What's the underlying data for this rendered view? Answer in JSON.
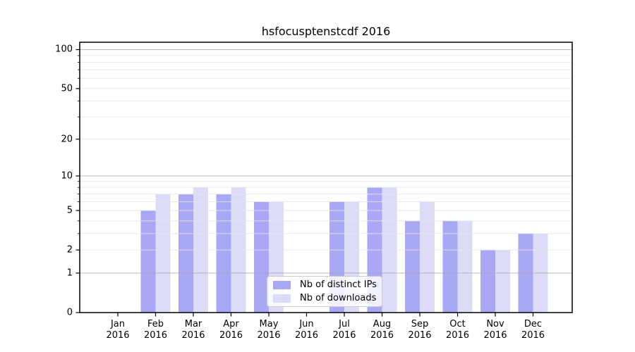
{
  "chart_data": {
    "type": "bar",
    "title": "hsfocusptenstcdf 2016",
    "categories": [
      {
        "month": "Jan",
        "year": "2016"
      },
      {
        "month": "Feb",
        "year": "2016"
      },
      {
        "month": "Mar",
        "year": "2016"
      },
      {
        "month": "Apr",
        "year": "2016"
      },
      {
        "month": "May",
        "year": "2016"
      },
      {
        "month": "Jun",
        "year": "2016"
      },
      {
        "month": "Jul",
        "year": "2016"
      },
      {
        "month": "Aug",
        "year": "2016"
      },
      {
        "month": "Sep",
        "year": "2016"
      },
      {
        "month": "Oct",
        "year": "2016"
      },
      {
        "month": "Nov",
        "year": "2016"
      },
      {
        "month": "Dec",
        "year": "2016"
      }
    ],
    "series": [
      {
        "name": "Nb of distinct IPs",
        "color": "#a8a8f4",
        "values": [
          0,
          5,
          7,
          7,
          6,
          0,
          6,
          8,
          4,
          4,
          2,
          3
        ]
      },
      {
        "name": "Nb of downloads",
        "color": "#dcdcf9",
        "values": [
          0,
          7,
          8,
          8,
          6,
          0,
          6,
          8,
          6,
          4,
          2,
          3
        ]
      }
    ],
    "y_scale": "log10(1+x)",
    "ylim": [
      0,
      114
    ],
    "y_ticks": [
      {
        "value": 0,
        "label": "0"
      },
      {
        "value": 1,
        "label": "1"
      },
      {
        "value": 2,
        "label": "2"
      },
      {
        "value": 5,
        "label": "5"
      },
      {
        "value": 10,
        "label": "10"
      },
      {
        "value": 20,
        "label": "20"
      },
      {
        "value": 50,
        "label": "50"
      },
      {
        "value": 100,
        "label": "100"
      }
    ],
    "y_major_gridlines": [
      1,
      10,
      100
    ],
    "y_minor_gridlines": [
      2,
      3,
      4,
      5,
      6,
      7,
      8,
      9,
      20,
      30,
      40,
      50,
      60,
      70,
      80,
      90
    ],
    "grid": true,
    "legend_position": "lower center",
    "colors": {
      "major_grid": "#c4c4c4",
      "minor_grid": "#ebebeb",
      "axis": "#000000",
      "background": "#ffffff"
    }
  }
}
